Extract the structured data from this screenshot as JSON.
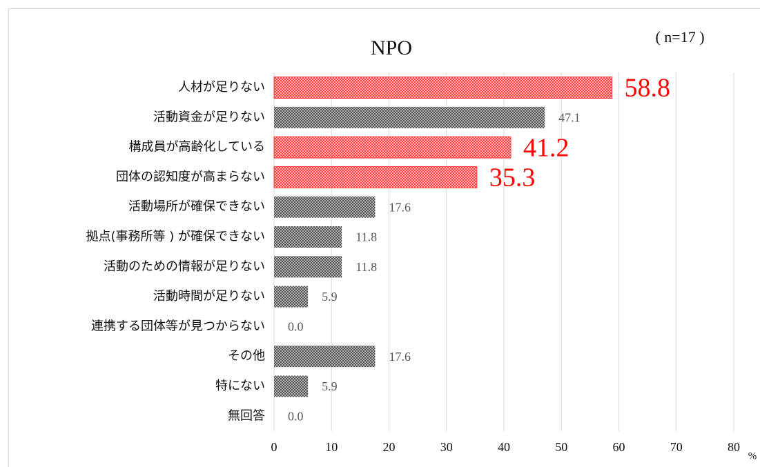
{
  "chart_data": {
    "type": "bar",
    "orientation": "horizontal",
    "title": "NPO",
    "annotation": "( n=17 )",
    "x_unit": "%",
    "categories": [
      "人材が足りない",
      "活動資金が足りない",
      "構成員が高齢化している",
      "団体の認知度が高まらない",
      "活動場所が確保できない",
      "拠点(事務所等 ) が確保できない",
      "活動のための情報が足りない",
      "活動時間が足りない",
      "連携する団体等が見つからない",
      "その他",
      "特にない",
      "無回答"
    ],
    "values": [
      58.8,
      47.1,
      41.2,
      35.3,
      17.6,
      11.8,
      11.8,
      5.9,
      0,
      17.6,
      5.9,
      0
    ],
    "value_labels": [
      "58.8",
      "47.1",
      "41.2",
      "35.3",
      "17.6",
      "11.8",
      "11.8",
      "5.9",
      "0.0",
      "17.6",
      "5.9",
      "0.0"
    ],
    "color": "#505050",
    "colors": [
      "#ff4040",
      "#505050",
      "#ff4040",
      "#ff4040",
      "#505050",
      "#505050",
      "#505050",
      "#505050",
      "#505050",
      "#505050",
      "#505050",
      "#505050"
    ],
    "xlim": [
      0,
      80
    ],
    "xticks": [
      0,
      10,
      20,
      30,
      40,
      50,
      60,
      70,
      80
    ],
    "grid": true
  }
}
